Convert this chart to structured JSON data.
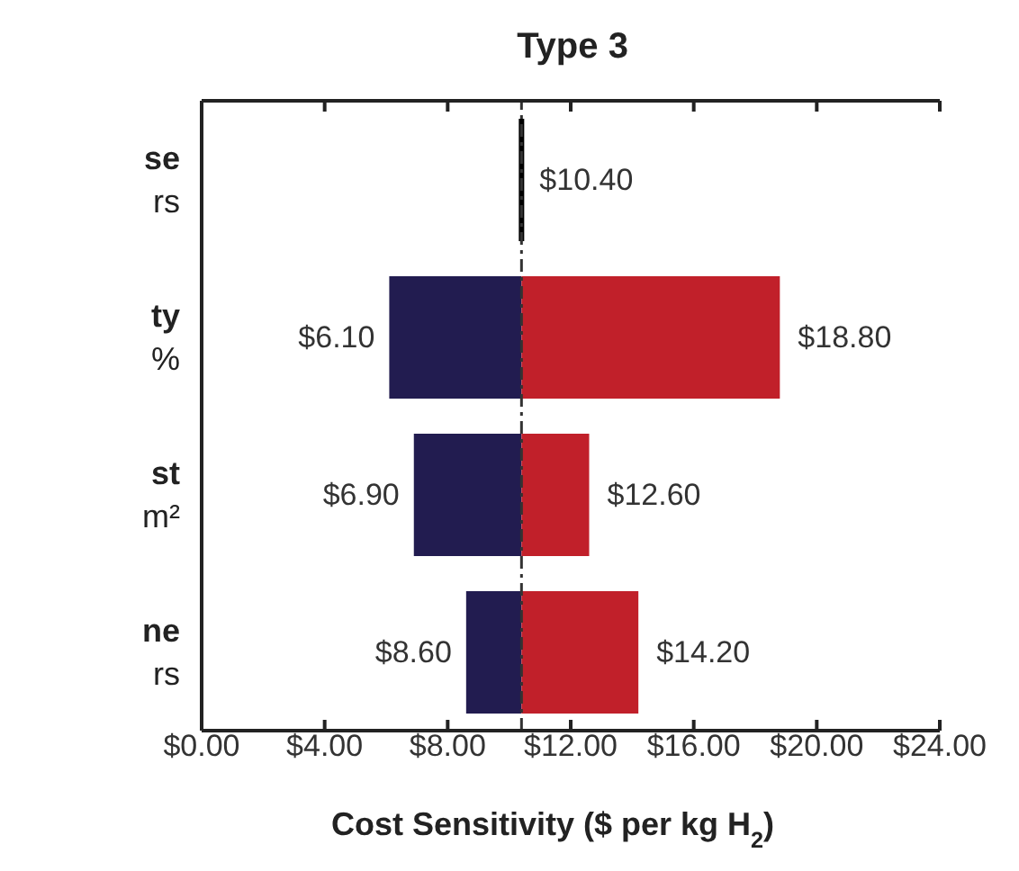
{
  "chart_data": {
    "type": "bar",
    "orientation": "horizontal",
    "title": "Type 3",
    "xlabel": "Cost Sensitivity ($ per kg H$_{2}$)",
    "categories": [
      "se\nrs",
      "ty\n%",
      "st\nm²",
      "ne\nrs"
    ],
    "series": [
      {
        "color": "#000000",
        "base": [
          10.4,
          null,
          null,
          null
        ],
        "values": [
          0,
          null,
          null,
          null
        ]
      },
      {
        "color": "#221c50",
        "base": [
          null,
          6.1,
          6.9,
          8.6
        ],
        "values": [
          null,
          4.3,
          3.5,
          1.8
        ]
      },
      {
        "color": "#c1202a",
        "base": [
          null,
          10.4,
          10.4,
          10.4
        ],
        "values": [
          null,
          8.4,
          2.2,
          3.8
        ]
      }
    ],
    "annotations": [
      {
        "text": "$10.40",
        "x": 10.4,
        "y": "se\nrs"
      },
      {
        "text": "$6.10",
        "x": 6.1,
        "y": "ty\n%"
      },
      {
        "text": "$18.80",
        "x": 18.8,
        "y": "ty\n%"
      },
      {
        "text": "$6.90",
        "x": 6.9,
        "y": "st\nm²"
      },
      {
        "text": "$12.60",
        "x": 12.6,
        "y": "st\nm²"
      },
      {
        "text": "$8.60",
        "x": 8.6,
        "y": "ne\nrs"
      },
      {
        "text": "$14.20",
        "x": 14.2,
        "y": "ne\nrs"
      }
    ],
    "xlim": [
      0,
      24
    ],
    "xticks": [
      {
        "value": 0,
        "label": "$0.00"
      },
      {
        "value": 4,
        "label": "$4.00"
      },
      {
        "value": 8,
        "label": "$8.00"
      },
      {
        "value": 12,
        "label": "$12.00"
      },
      {
        "value": 16,
        "label": "$16.00"
      },
      {
        "value": 20,
        "label": "$20.00"
      },
      {
        "value": 24,
        "label": "$24.00"
      }
    ],
    "ref_lines": [
      {
        "axis": "x",
        "value": 10.4,
        "color": "#333333",
        "line_style": "dashed"
      }
    ],
    "grid": false,
    "legend": false
  }
}
